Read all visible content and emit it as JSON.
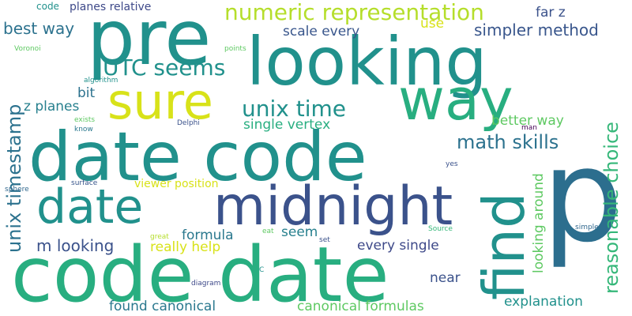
{
  "words": [
    {
      "text": "p",
      "color": "#2c6e8e"
    },
    {
      "text": "code date",
      "color": "#28ae80"
    },
    {
      "text": "date code",
      "color": "#21918c"
    },
    {
      "text": "pre",
      "color": "#21918c"
    },
    {
      "text": "looking",
      "color": "#21918c"
    },
    {
      "text": "midnight",
      "color": "#3b528b"
    },
    {
      "text": "date",
      "color": "#21918c"
    },
    {
      "text": "find",
      "color": "#21918c"
    },
    {
      "text": "way",
      "color": "#28ae80"
    },
    {
      "text": "sure",
      "color": "#d8e219"
    },
    {
      "text": "UTC seems",
      "color": "#21918c"
    },
    {
      "text": "unix time",
      "color": "#21918c"
    },
    {
      "text": "numeric representation",
      "color": "#b5de2b"
    },
    {
      "text": "simpler method",
      "color": "#39568c"
    },
    {
      "text": "best way",
      "color": "#2c728e"
    },
    {
      "text": "scale every",
      "color": "#39568c"
    },
    {
      "text": "planes relative",
      "color": "#3e4989"
    },
    {
      "text": "code",
      "color": "#21918c"
    },
    {
      "text": "use",
      "color": "#d8e219"
    },
    {
      "text": "far z",
      "color": "#3b528b"
    },
    {
      "text": "math skills",
      "color": "#2c728e"
    },
    {
      "text": "better way",
      "color": "#5ec962"
    },
    {
      "text": "reasonable choice",
      "color": "#35b779"
    },
    {
      "text": "unix timestamp",
      "color": "#2c728e"
    },
    {
      "text": "z planes",
      "color": "#27808e"
    },
    {
      "text": "bit",
      "color": "#2c728e"
    },
    {
      "text": "single vertex",
      "color": "#28ae80"
    },
    {
      "text": "looking around",
      "color": "#5ec962"
    },
    {
      "text": "viewer position",
      "color": "#d8e219"
    },
    {
      "text": "formula",
      "color": "#2a788e"
    },
    {
      "text": "seem",
      "color": "#27808e"
    },
    {
      "text": "m looking",
      "color": "#3b528b"
    },
    {
      "text": "really help",
      "color": "#d8e219"
    },
    {
      "text": "every single",
      "color": "#3e4989"
    },
    {
      "text": "near",
      "color": "#3b528b"
    },
    {
      "text": "explanation",
      "color": "#21918c"
    },
    {
      "text": "found canonical",
      "color": "#2a788e"
    },
    {
      "text": "canonical formulas",
      "color": "#5ec962"
    },
    {
      "text": "Voronoi",
      "color": "#5ec962"
    },
    {
      "text": "points",
      "color": "#5ec962"
    },
    {
      "text": "algorithm",
      "color": "#21918c"
    },
    {
      "text": "exists",
      "color": "#5ec962"
    },
    {
      "text": "know",
      "color": "#2a788e"
    },
    {
      "text": "Delphi",
      "color": "#3b528b"
    },
    {
      "text": "man",
      "color": "#440154"
    },
    {
      "text": "yes",
      "color": "#3b528b"
    },
    {
      "text": "sphere",
      "color": "#31688e"
    },
    {
      "text": "surface",
      "color": "#39568c"
    },
    {
      "text": "great",
      "color": "#b5de2b"
    },
    {
      "text": "eat",
      "color": "#5ec962"
    },
    {
      "text": "set",
      "color": "#3b528b"
    },
    {
      "text": "Source",
      "color": "#35b779"
    },
    {
      "text": "simple",
      "color": "#31688e"
    },
    {
      "text": "C",
      "color": "#21918c"
    },
    {
      "text": "diagram",
      "color": "#3e4989"
    }
  ]
}
